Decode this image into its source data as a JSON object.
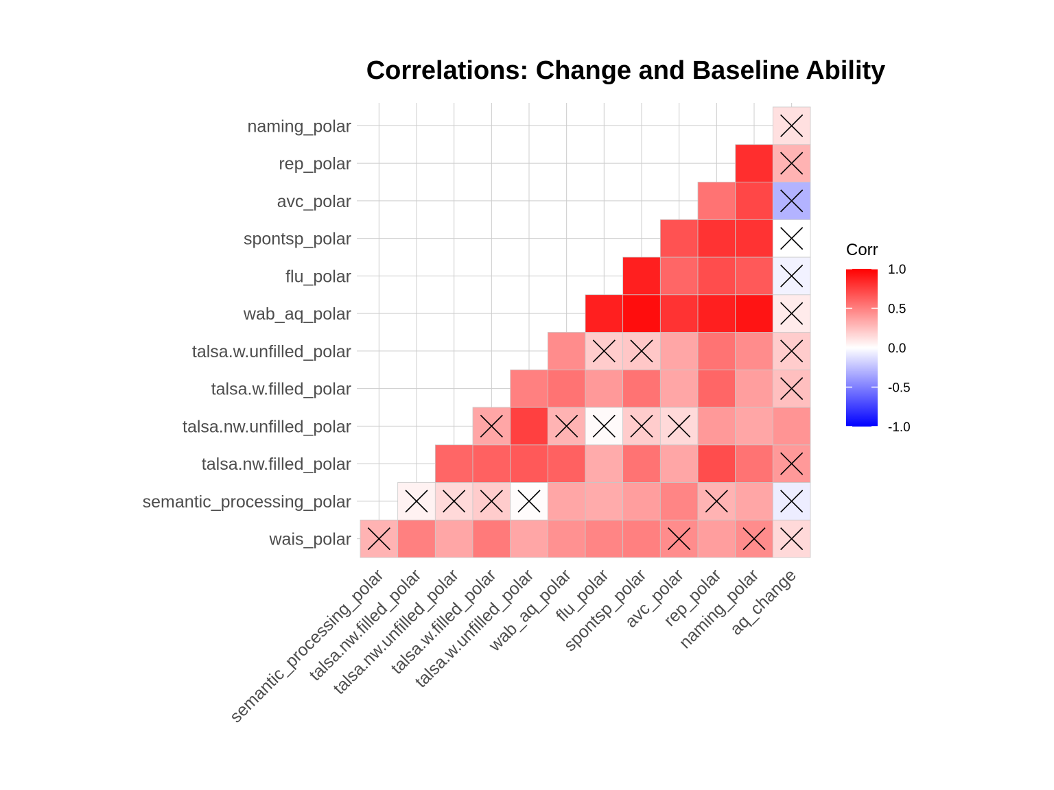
{
  "chart_data": {
    "type": "heatmap",
    "title": "Correlations: Change and Baseline Ability",
    "legend": {
      "title": "Corr",
      "ticks": [
        "1.0",
        "0.5",
        "0.0",
        "-0.5",
        "-1.0"
      ],
      "tick_values": [
        1.0,
        0.5,
        0.0,
        -0.5,
        -1.0
      ],
      "range": [
        -1,
        1
      ],
      "placement": "right"
    },
    "colors": {
      "low": "#0000FF",
      "mid": "#FFFFFF",
      "high": "#FF0000"
    },
    "x_labels": [
      "semantic_processing_polar",
      "talsa.nw.filled_polar",
      "talsa.nw.unfilled_polar",
      "talsa.w.filled_polar",
      "talsa.w.unfilled_polar",
      "wab_aq_polar",
      "flu_polar",
      "spontsp_polar",
      "avc_polar",
      "rep_polar",
      "naming_polar",
      "aq_change"
    ],
    "y_labels": [
      "wais_polar",
      "semantic_processing_polar",
      "talsa.nw.filled_polar",
      "talsa.nw.unfilled_polar",
      "talsa.w.filled_polar",
      "talsa.w.unfilled_polar",
      "wab_aq_polar",
      "flu_polar",
      "spontsp_polar",
      "avc_polar",
      "rep_polar",
      "naming_polar"
    ],
    "cells": [
      {
        "x": "semantic_processing_polar",
        "y": "wais_polar",
        "value": 0.3,
        "insignificant": true
      },
      {
        "x": "talsa.nw.filled_polar",
        "y": "wais_polar",
        "value": 0.5,
        "insignificant": false
      },
      {
        "x": "talsa.nw.unfilled_polar",
        "y": "wais_polar",
        "value": 0.35,
        "insignificant": false
      },
      {
        "x": "talsa.w.filled_polar",
        "y": "wais_polar",
        "value": 0.52,
        "insignificant": false
      },
      {
        "x": "talsa.w.unfilled_polar",
        "y": "wais_polar",
        "value": 0.35,
        "insignificant": false
      },
      {
        "x": "wab_aq_polar",
        "y": "wais_polar",
        "value": 0.43,
        "insignificant": false
      },
      {
        "x": "flu_polar",
        "y": "wais_polar",
        "value": 0.48,
        "insignificant": false
      },
      {
        "x": "spontsp_polar",
        "y": "wais_polar",
        "value": 0.5,
        "insignificant": false
      },
      {
        "x": "avc_polar",
        "y": "wais_polar",
        "value": 0.45,
        "insignificant": true
      },
      {
        "x": "rep_polar",
        "y": "wais_polar",
        "value": 0.38,
        "insignificant": false
      },
      {
        "x": "naming_polar",
        "y": "wais_polar",
        "value": 0.45,
        "insignificant": true
      },
      {
        "x": "aq_change",
        "y": "wais_polar",
        "value": 0.15,
        "insignificant": true
      },
      {
        "x": "talsa.nw.filled_polar",
        "y": "semantic_processing_polar",
        "value": 0.05,
        "insignificant": true
      },
      {
        "x": "talsa.nw.unfilled_polar",
        "y": "semantic_processing_polar",
        "value": 0.15,
        "insignificant": true
      },
      {
        "x": "talsa.w.filled_polar",
        "y": "semantic_processing_polar",
        "value": 0.2,
        "insignificant": true
      },
      {
        "x": "talsa.w.unfilled_polar",
        "y": "semantic_processing_polar",
        "value": 0.01,
        "insignificant": true
      },
      {
        "x": "wab_aq_polar",
        "y": "semantic_processing_polar",
        "value": 0.35,
        "insignificant": false
      },
      {
        "x": "flu_polar",
        "y": "semantic_processing_polar",
        "value": 0.33,
        "insignificant": false
      },
      {
        "x": "spontsp_polar",
        "y": "semantic_processing_polar",
        "value": 0.38,
        "insignificant": false
      },
      {
        "x": "avc_polar",
        "y": "semantic_processing_polar",
        "value": 0.48,
        "insignificant": false
      },
      {
        "x": "rep_polar",
        "y": "semantic_processing_polar",
        "value": 0.3,
        "insignificant": true
      },
      {
        "x": "naming_polar",
        "y": "semantic_processing_polar",
        "value": 0.35,
        "insignificant": false
      },
      {
        "x": "aq_change",
        "y": "semantic_processing_polar",
        "value": -0.07,
        "insignificant": true
      },
      {
        "x": "talsa.nw.unfilled_polar",
        "y": "talsa.nw.filled_polar",
        "value": 0.6,
        "insignificant": false
      },
      {
        "x": "talsa.w.filled_polar",
        "y": "talsa.nw.filled_polar",
        "value": 0.62,
        "insignificant": false
      },
      {
        "x": "talsa.w.unfilled_polar",
        "y": "talsa.nw.filled_polar",
        "value": 0.65,
        "insignificant": false
      },
      {
        "x": "wab_aq_polar",
        "y": "talsa.nw.filled_polar",
        "value": 0.62,
        "insignificant": false
      },
      {
        "x": "flu_polar",
        "y": "talsa.nw.filled_polar",
        "value": 0.33,
        "insignificant": false
      },
      {
        "x": "spontsp_polar",
        "y": "talsa.nw.filled_polar",
        "value": 0.55,
        "insignificant": false
      },
      {
        "x": "avc_polar",
        "y": "talsa.nw.filled_polar",
        "value": 0.35,
        "insignificant": false
      },
      {
        "x": "rep_polar",
        "y": "talsa.nw.filled_polar",
        "value": 0.7,
        "insignificant": false
      },
      {
        "x": "naming_polar",
        "y": "talsa.nw.filled_polar",
        "value": 0.55,
        "insignificant": false
      },
      {
        "x": "aq_change",
        "y": "talsa.nw.filled_polar",
        "value": 0.4,
        "insignificant": true
      },
      {
        "x": "talsa.w.filled_polar",
        "y": "talsa.nw.unfilled_polar",
        "value": 0.35,
        "insignificant": true
      },
      {
        "x": "talsa.w.unfilled_polar",
        "y": "talsa.nw.unfilled_polar",
        "value": 0.75,
        "insignificant": false
      },
      {
        "x": "wab_aq_polar",
        "y": "talsa.nw.unfilled_polar",
        "value": 0.3,
        "insignificant": true
      },
      {
        "x": "flu_polar",
        "y": "talsa.nw.unfilled_polar",
        "value": 0.02,
        "insignificant": true
      },
      {
        "x": "spontsp_polar",
        "y": "talsa.nw.unfilled_polar",
        "value": 0.2,
        "insignificant": true
      },
      {
        "x": "avc_polar",
        "y": "talsa.nw.unfilled_polar",
        "value": 0.15,
        "insignificant": true
      },
      {
        "x": "rep_polar",
        "y": "talsa.nw.unfilled_polar",
        "value": 0.4,
        "insignificant": false
      },
      {
        "x": "naming_polar",
        "y": "talsa.nw.unfilled_polar",
        "value": 0.35,
        "insignificant": false
      },
      {
        "x": "aq_change",
        "y": "talsa.nw.unfilled_polar",
        "value": 0.42,
        "insignificant": false
      },
      {
        "x": "talsa.w.unfilled_polar",
        "y": "talsa.w.filled_polar",
        "value": 0.5,
        "insignificant": false
      },
      {
        "x": "wab_aq_polar",
        "y": "talsa.w.filled_polar",
        "value": 0.55,
        "insignificant": false
      },
      {
        "x": "flu_polar",
        "y": "talsa.w.filled_polar",
        "value": 0.4,
        "insignificant": false
      },
      {
        "x": "spontsp_polar",
        "y": "talsa.w.filled_polar",
        "value": 0.55,
        "insignificant": false
      },
      {
        "x": "avc_polar",
        "y": "talsa.w.filled_polar",
        "value": 0.35,
        "insignificant": false
      },
      {
        "x": "rep_polar",
        "y": "talsa.w.filled_polar",
        "value": 0.6,
        "insignificant": false
      },
      {
        "x": "naming_polar",
        "y": "talsa.w.filled_polar",
        "value": 0.38,
        "insignificant": false
      },
      {
        "x": "aq_change",
        "y": "talsa.w.filled_polar",
        "value": 0.25,
        "insignificant": true
      },
      {
        "x": "wab_aq_polar",
        "y": "talsa.w.unfilled_polar",
        "value": 0.45,
        "insignificant": false
      },
      {
        "x": "flu_polar",
        "y": "talsa.w.unfilled_polar",
        "value": 0.2,
        "insignificant": true
      },
      {
        "x": "spontsp_polar",
        "y": "talsa.w.unfilled_polar",
        "value": 0.22,
        "insignificant": true
      },
      {
        "x": "avc_polar",
        "y": "talsa.w.unfilled_polar",
        "value": 0.35,
        "insignificant": false
      },
      {
        "x": "rep_polar",
        "y": "talsa.w.unfilled_polar",
        "value": 0.55,
        "insignificant": false
      },
      {
        "x": "naming_polar",
        "y": "talsa.w.unfilled_polar",
        "value": 0.45,
        "insignificant": false
      },
      {
        "x": "aq_change",
        "y": "talsa.w.unfilled_polar",
        "value": 0.2,
        "insignificant": true
      },
      {
        "x": "flu_polar",
        "y": "wab_aq_polar",
        "value": 0.88,
        "insignificant": false
      },
      {
        "x": "spontsp_polar",
        "y": "wab_aq_polar",
        "value": 0.95,
        "insignificant": false
      },
      {
        "x": "avc_polar",
        "y": "wab_aq_polar",
        "value": 0.8,
        "insignificant": false
      },
      {
        "x": "rep_polar",
        "y": "wab_aq_polar",
        "value": 0.88,
        "insignificant": false
      },
      {
        "x": "naming_polar",
        "y": "wab_aq_polar",
        "value": 0.92,
        "insignificant": false
      },
      {
        "x": "aq_change",
        "y": "wab_aq_polar",
        "value": 0.08,
        "insignificant": true
      },
      {
        "x": "spontsp_polar",
        "y": "flu_polar",
        "value": 0.88,
        "insignificant": false
      },
      {
        "x": "avc_polar",
        "y": "flu_polar",
        "value": 0.6,
        "insignificant": false
      },
      {
        "x": "rep_polar",
        "y": "flu_polar",
        "value": 0.7,
        "insignificant": false
      },
      {
        "x": "naming_polar",
        "y": "flu_polar",
        "value": 0.65,
        "insignificant": false
      },
      {
        "x": "aq_change",
        "y": "flu_polar",
        "value": -0.05,
        "insignificant": true
      },
      {
        "x": "avc_polar",
        "y": "spontsp_polar",
        "value": 0.68,
        "insignificant": false
      },
      {
        "x": "rep_polar",
        "y": "spontsp_polar",
        "value": 0.8,
        "insignificant": false
      },
      {
        "x": "naming_polar",
        "y": "spontsp_polar",
        "value": 0.8,
        "insignificant": false
      },
      {
        "x": "aq_change",
        "y": "spontsp_polar",
        "value": 0.0,
        "insignificant": true
      },
      {
        "x": "rep_polar",
        "y": "avc_polar",
        "value": 0.55,
        "insignificant": false
      },
      {
        "x": "naming_polar",
        "y": "avc_polar",
        "value": 0.72,
        "insignificant": false
      },
      {
        "x": "aq_change",
        "y": "avc_polar",
        "value": -0.3,
        "insignificant": true
      },
      {
        "x": "naming_polar",
        "y": "rep_polar",
        "value": 0.82,
        "insignificant": false
      },
      {
        "x": "aq_change",
        "y": "rep_polar",
        "value": 0.3,
        "insignificant": true
      },
      {
        "x": "aq_change",
        "y": "naming_polar",
        "value": 0.12,
        "insignificant": true
      }
    ]
  }
}
